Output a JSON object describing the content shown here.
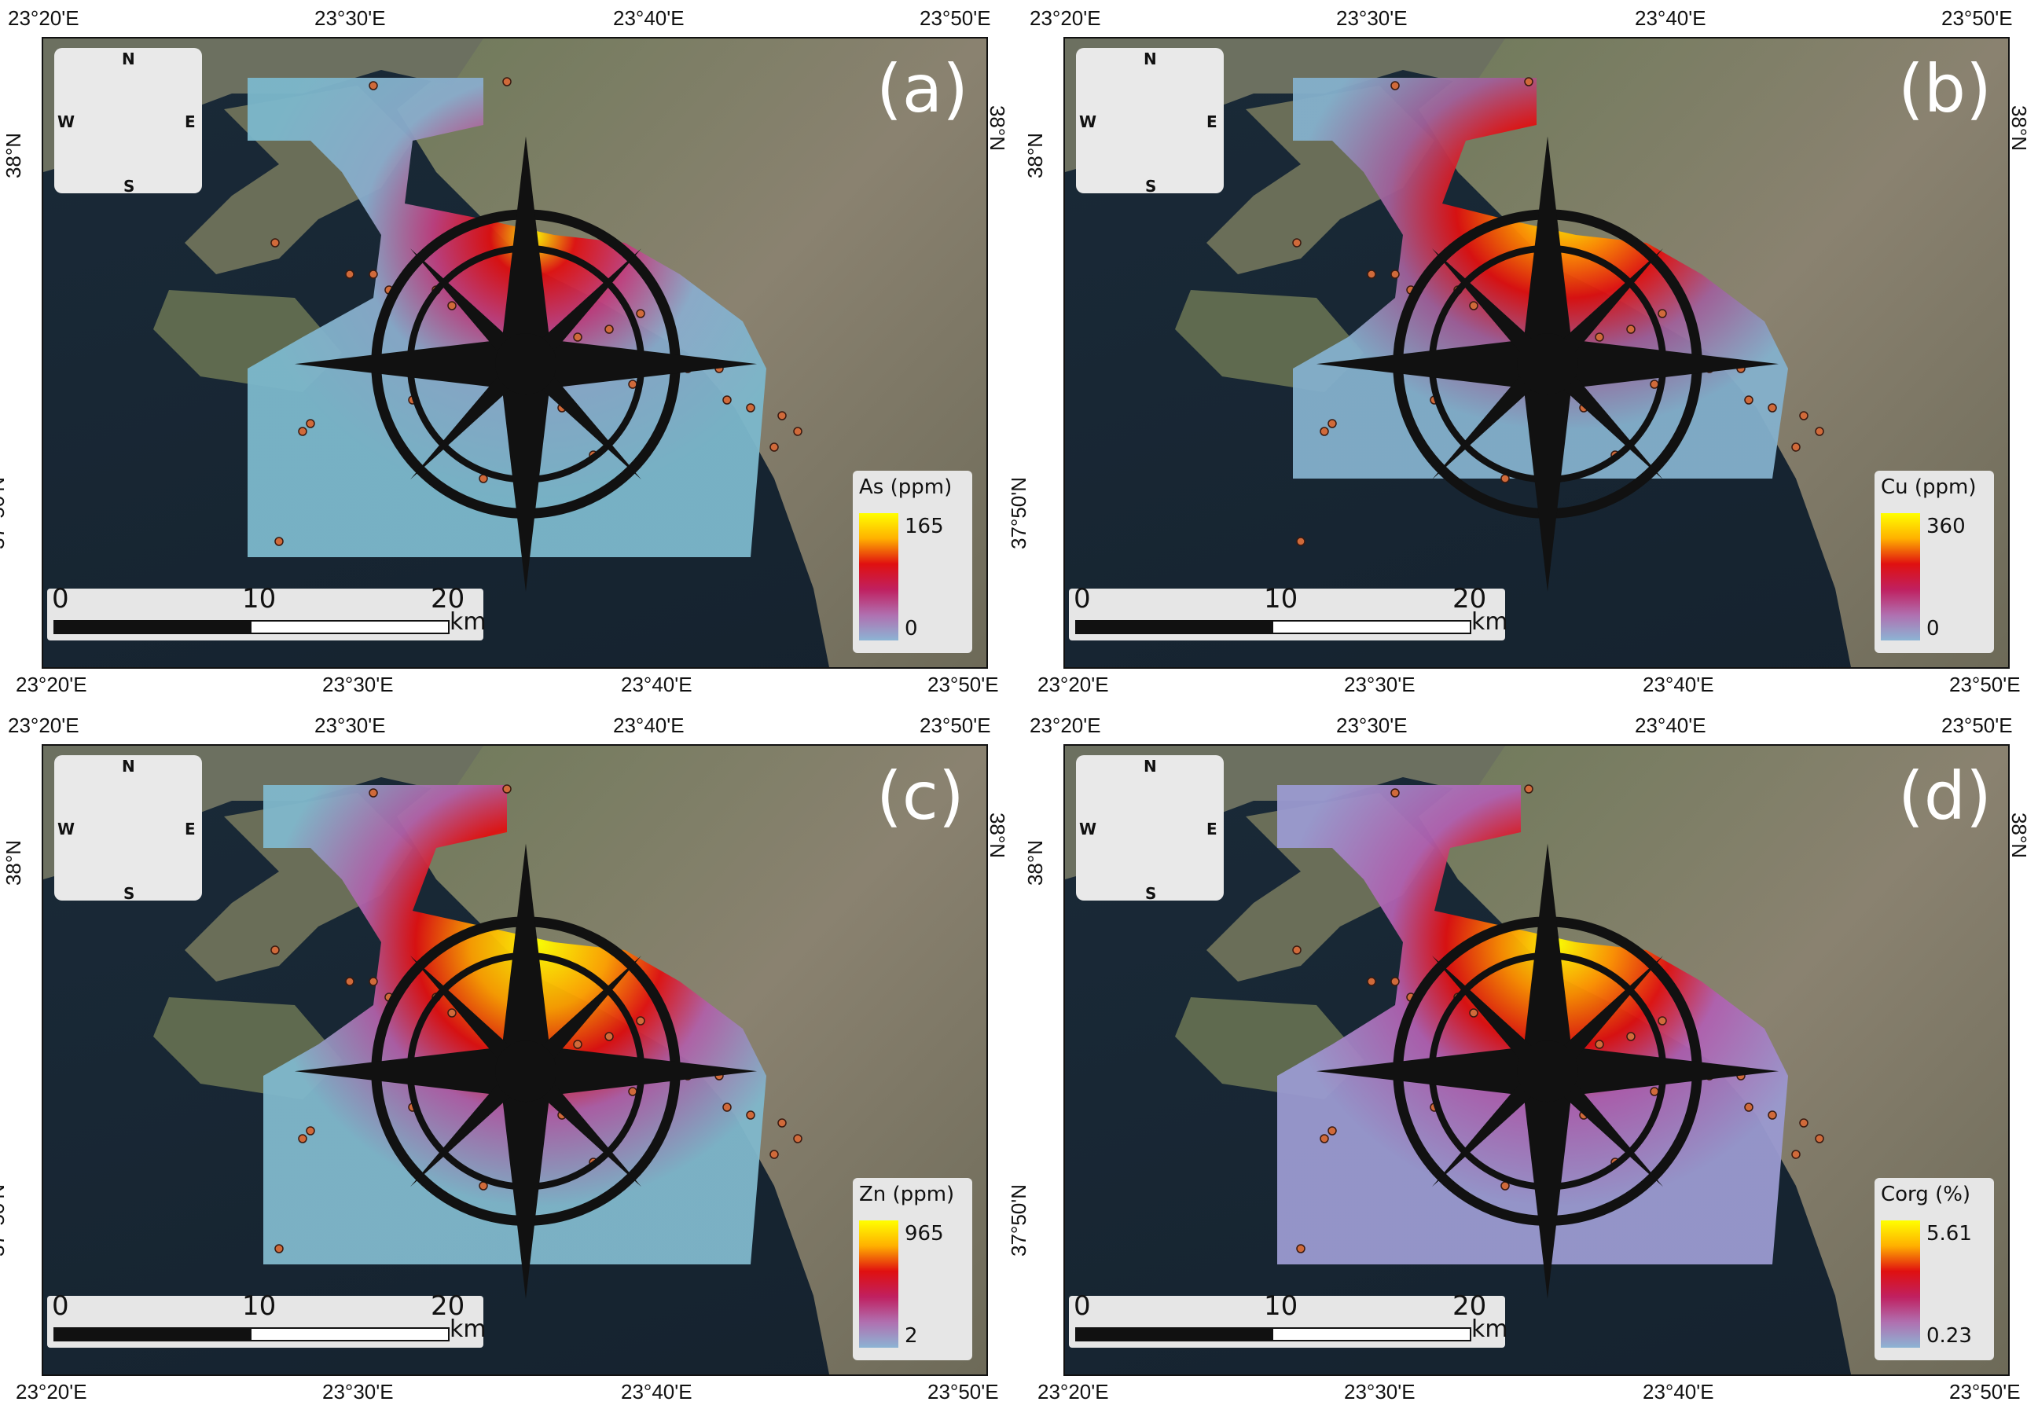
{
  "lon_labels": [
    "23°20'E",
    "23°30'E",
    "23°40'E",
    "23°50'E"
  ],
  "lat_labels": [
    "38°N",
    "37°50'N"
  ],
  "compass": {
    "n": "N",
    "s": "S",
    "e": "E",
    "w": "W",
    "icon": "compass-rose-icon"
  },
  "scale": {
    "labels": [
      "0",
      "10",
      "20"
    ],
    "unit": "km"
  },
  "colors": {
    "ramp_high": "#ffff00",
    "ramp_mid": "#e01010",
    "ramp_mid2": "#c02060",
    "ramp_low": "#8cb4d4",
    "sea": "#15222e",
    "land": "#7a7566",
    "sample_point": "#d06a3a"
  },
  "panels": [
    {
      "letter": "(a)",
      "variable": "As (ppm)",
      "max": "165",
      "min": "0"
    },
    {
      "letter": "(b)",
      "variable": "Cu (ppm)",
      "max": "360",
      "min": "0"
    },
    {
      "letter": "(c)",
      "variable": "Zn (ppm)",
      "max": "965",
      "min": "2"
    },
    {
      "letter": "(d)",
      "variable": "Corg (%)",
      "max": "5.61",
      "min": "0.23"
    }
  ]
}
